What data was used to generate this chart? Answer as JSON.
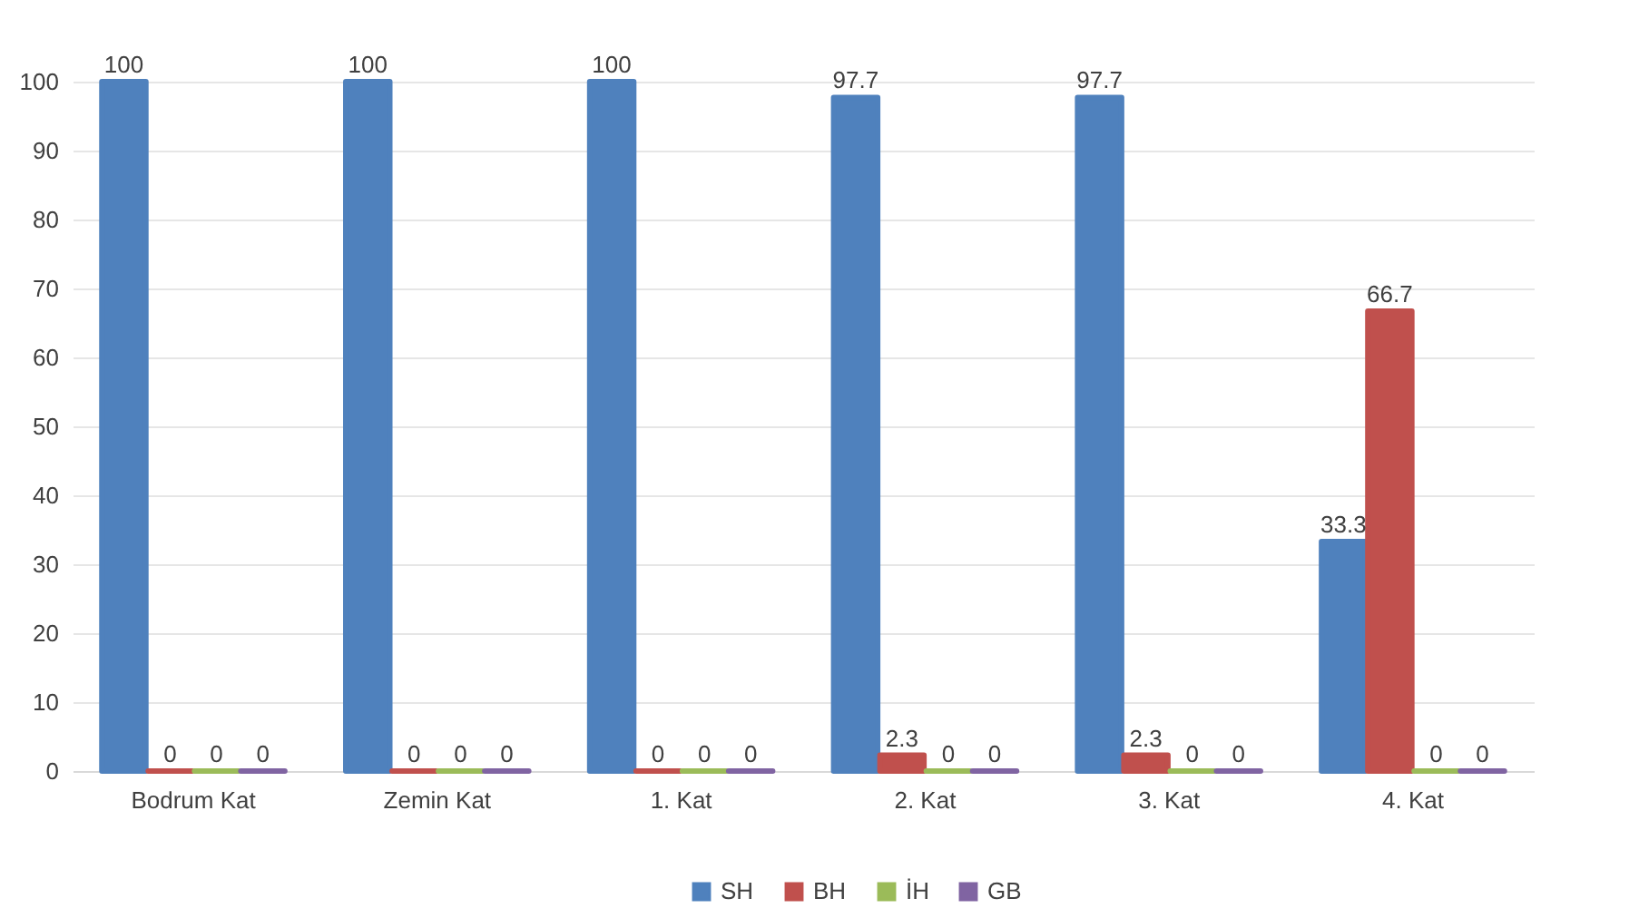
{
  "chart_data": {
    "type": "bar",
    "categories": [
      "Bodrum Kat",
      "Zemin Kat",
      "1. Kat",
      "2. Kat",
      "3. Kat",
      "4. Kat"
    ],
    "series": [
      {
        "name": "SH",
        "color": "#4f81bd",
        "values": [
          100,
          100,
          100,
          97.7,
          97.7,
          33.3
        ]
      },
      {
        "name": "BH",
        "color": "#c0504d",
        "values": [
          0,
          0,
          0,
          2.3,
          2.3,
          66.7
        ]
      },
      {
        "name": "İH",
        "color": "#9bbb59",
        "values": [
          0,
          0,
          0,
          0,
          0,
          0
        ]
      },
      {
        "name": "GB",
        "color": "#8064a2",
        "values": [
          0,
          0,
          0,
          0,
          0,
          0
        ]
      }
    ],
    "ylim": [
      0,
      100
    ],
    "yticks": [
      0,
      10,
      20,
      30,
      40,
      50,
      60,
      70,
      80,
      90,
      100
    ],
    "grid": "y",
    "legend": "bottom",
    "data_labels": true
  }
}
